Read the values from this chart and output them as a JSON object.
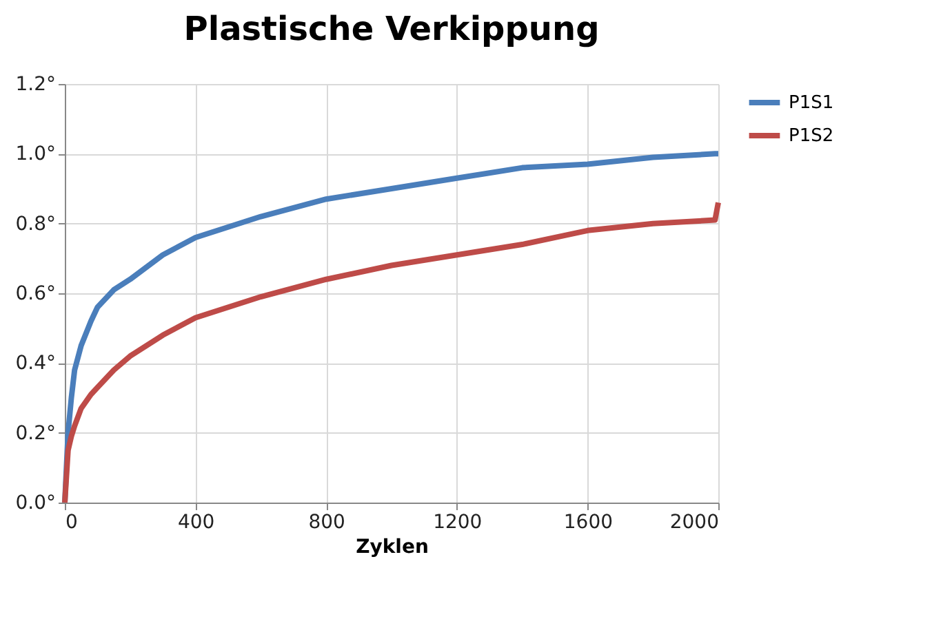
{
  "chart_data": {
    "type": "line",
    "title": "Plastische Verkippung",
    "xlabel": "Zyklen",
    "xlim": [
      0,
      2000
    ],
    "xticks": [
      0,
      400,
      800,
      1200,
      1600,
      2000
    ],
    "ylim": [
      0,
      1.2
    ],
    "yticks": [
      {
        "value": 0,
        "label": "0.0°"
      },
      {
        "value": 0.2,
        "label": "0.2°"
      },
      {
        "value": 0.4,
        "label": "0.4°"
      },
      {
        "value": 0.6,
        "label": "0.6°"
      },
      {
        "value": 0.8,
        "label": "0.8°"
      },
      {
        "value": 1.0,
        "label": "1.0°"
      },
      {
        "value": 1.2,
        "label": "1.2°"
      }
    ],
    "grid": true,
    "legend": "right",
    "marker": "none",
    "line_style": "solid",
    "x": [
      0,
      10,
      20,
      30,
      50,
      80,
      100,
      150,
      200,
      300,
      400,
      500,
      600,
      800,
      1000,
      1200,
      1400,
      1600,
      1800,
      1990,
      2000
    ],
    "series": [
      {
        "name": "P1S1",
        "color": "#4a7ebb",
        "values": [
          0,
          0.2,
          0.3,
          0.38,
          0.45,
          0.52,
          0.56,
          0.61,
          0.64,
          0.71,
          0.76,
          0.79,
          0.82,
          0.87,
          0.9,
          0.93,
          0.96,
          0.97,
          0.99,
          1.0,
          1.0
        ]
      },
      {
        "name": "P1S2",
        "color": "#be4b48",
        "values": [
          0,
          0.15,
          0.19,
          0.22,
          0.27,
          0.31,
          0.33,
          0.38,
          0.42,
          0.48,
          0.53,
          0.56,
          0.59,
          0.64,
          0.68,
          0.71,
          0.74,
          0.78,
          0.8,
          0.81,
          0.86
        ]
      }
    ]
  }
}
